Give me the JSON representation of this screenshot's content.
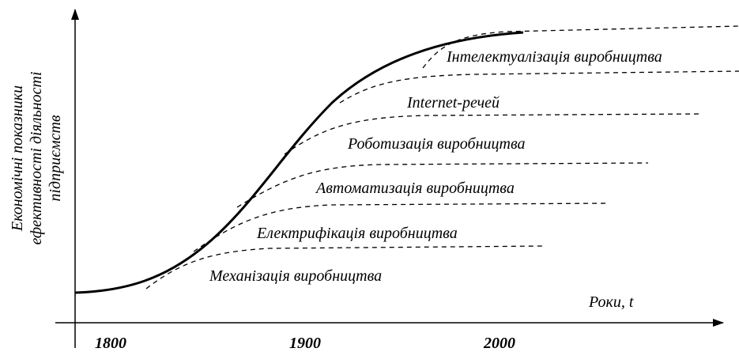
{
  "axis": {
    "y_label": [
      "Економічні показники",
      "ефективності діяльності",
      "підприємств"
    ],
    "x_label": "Роки, t",
    "x_ticks": [
      "1800",
      "1900",
      "2000"
    ]
  },
  "curves": [
    {
      "label": "Механізація виробництва"
    },
    {
      "label": "Електрифікація виробництва"
    },
    {
      "label": "Автоматизація виробництва"
    },
    {
      "label": "Роботизація виробництва"
    },
    {
      "label": "Internet-речей"
    },
    {
      "label": "Інтелектуалізація виробництва"
    }
  ]
}
